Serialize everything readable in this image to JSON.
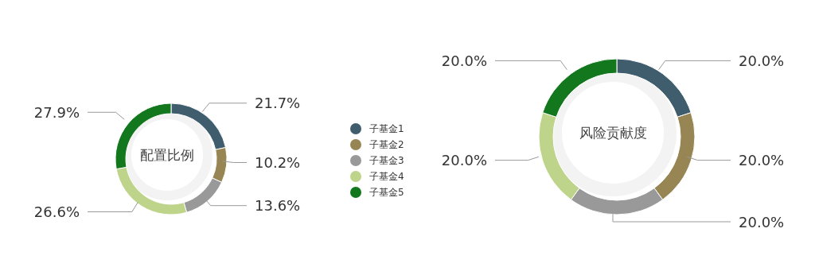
{
  "chart_data": [
    {
      "type": "donut",
      "title": "配置比例",
      "categories": [
        null,
        null,
        null,
        null,
        null
      ],
      "values": [
        21.7,
        10.2,
        13.6,
        26.6,
        27.9
      ],
      "value_labels": [
        "21.7%",
        "10.2%",
        "13.6%",
        "26.6%",
        "27.9%"
      ],
      "colors": [
        "#405d6d",
        "#978654",
        "#999999",
        "#bed48a",
        "#13771d"
      ]
    },
    {
      "type": "donut",
      "title": "风险贡献度",
      "categories": [
        "子基金1",
        "子基金2",
        "子基金3",
        "子基金4",
        "子基金5"
      ],
      "values": [
        20.0,
        20.0,
        20.0,
        20.0,
        20.0
      ],
      "value_labels": [
        "20.0%",
        "20.0%",
        "20.0%",
        "20.0%",
        "20.0%"
      ],
      "colors": [
        "#405d6d",
        "#978654",
        "#999999",
        "#bed48a",
        "#13771d"
      ],
      "legend": "left"
    }
  ]
}
